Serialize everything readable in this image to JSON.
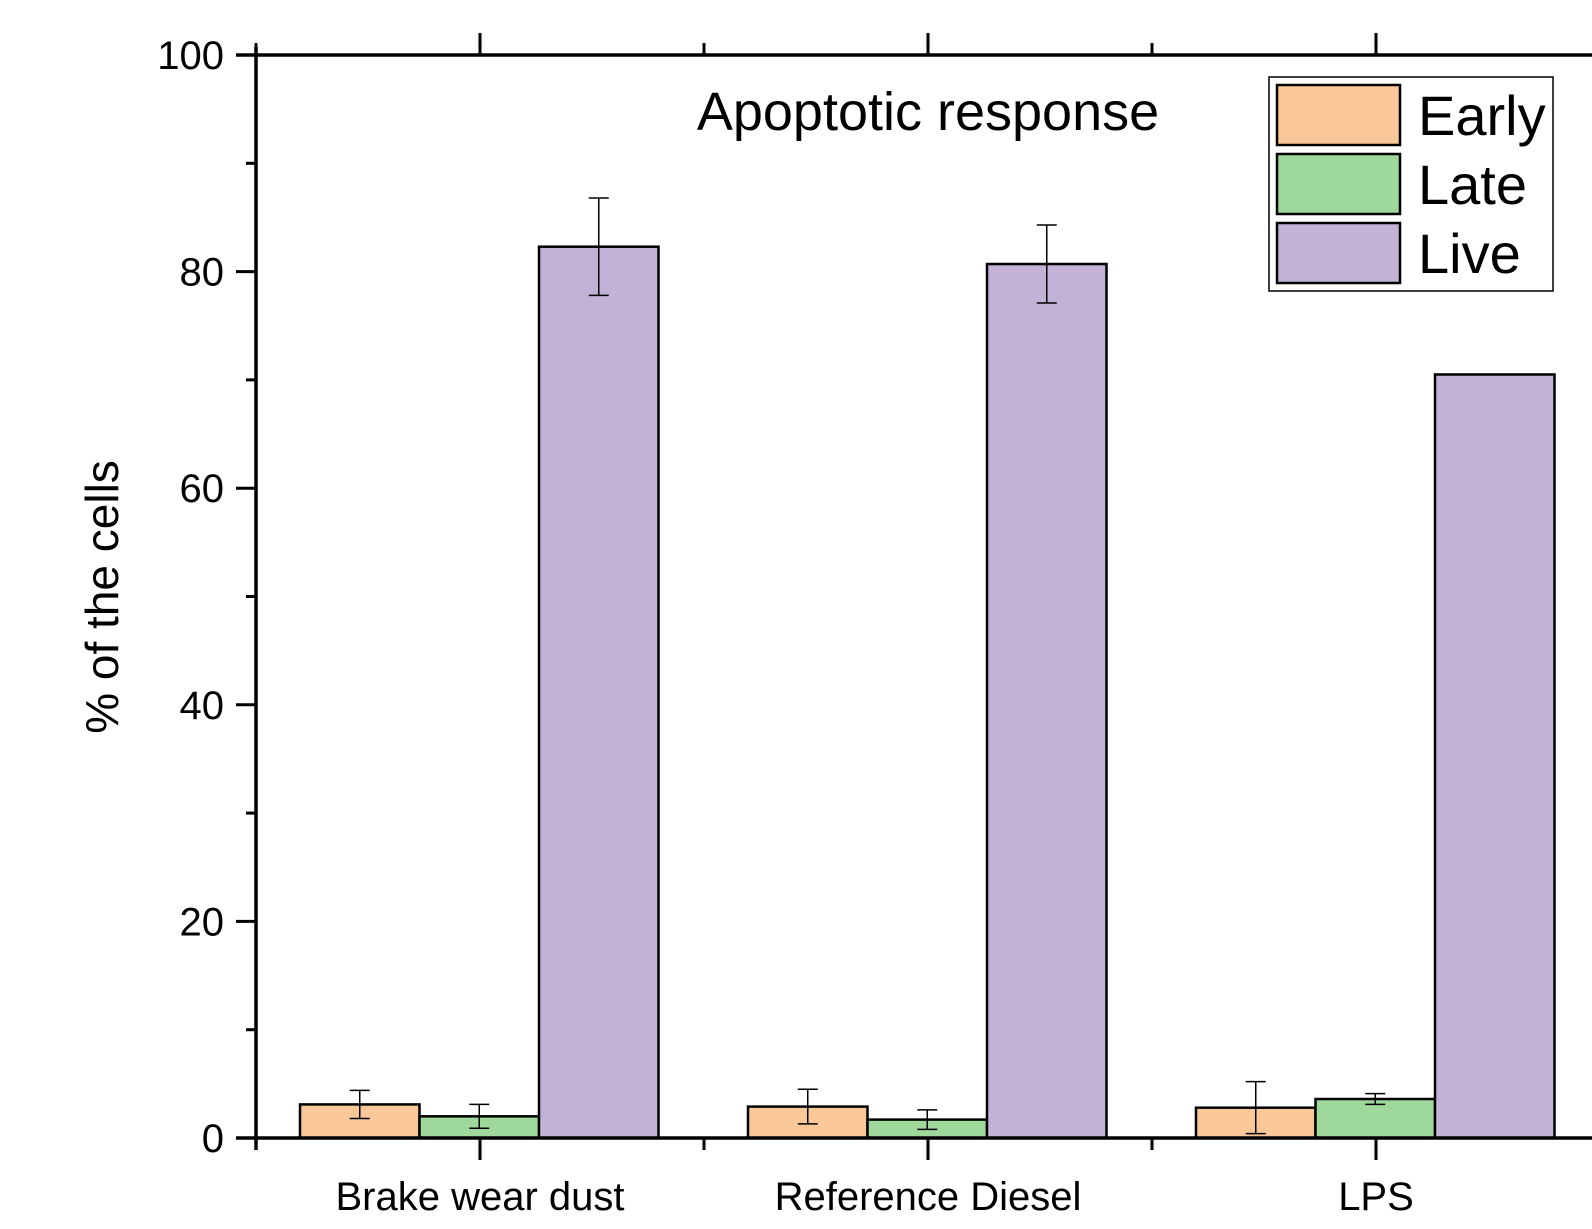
{
  "chart_data": {
    "type": "bar",
    "title": "Apoptotic response",
    "ylabel": "% of the cells",
    "xlabel": "",
    "ylim": [
      0,
      100
    ],
    "yticks": [
      0,
      20,
      40,
      60,
      80,
      100
    ],
    "grid": false,
    "legend_position": "top-right",
    "categories": [
      "Brake wear dust",
      "Reference Diesel",
      "LPS"
    ],
    "series": [
      {
        "name": "Early",
        "color": "#FAC898",
        "values": [
          3.1,
          2.9,
          2.8
        ],
        "errors": [
          1.3,
          1.6,
          2.4
        ]
      },
      {
        "name": "Late",
        "color": "#9ED89A",
        "values": [
          2.0,
          1.7,
          3.6
        ],
        "errors": [
          1.1,
          0.9,
          0.5
        ]
      },
      {
        "name": "Live",
        "color": "#C2B2D8",
        "values": [
          82.3,
          80.7,
          70.5
        ],
        "errors": [
          4.5,
          3.6,
          null
        ]
      }
    ]
  }
}
